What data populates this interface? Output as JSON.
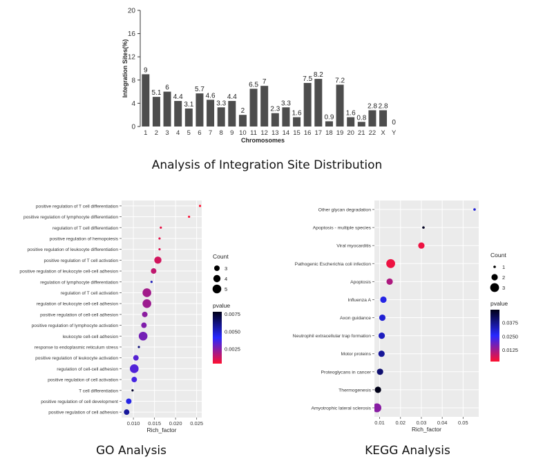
{
  "chart_data": [
    {
      "type": "bar",
      "title": "",
      "xlabel": "Chromosomes",
      "ylabel": "Integration Sites(%)",
      "ylim": [
        0,
        20
      ],
      "yticks": [
        0,
        4,
        8,
        12,
        16,
        20
      ],
      "grid": false,
      "categories": [
        "1",
        "2",
        "3",
        "4",
        "5",
        "6",
        "7",
        "8",
        "9",
        "10",
        "11",
        "12",
        "13",
        "14",
        "15",
        "16",
        "17",
        "18",
        "19",
        "20",
        "21",
        "22",
        "X",
        "Y"
      ],
      "values": [
        9,
        5.1,
        6,
        4.4,
        3.1,
        5.7,
        4.6,
        3.3,
        4.4,
        2,
        6.5,
        7,
        2.3,
        3.3,
        1.6,
        7.5,
        8.2,
        0.9,
        7.2,
        1.6,
        0.8,
        2.8,
        2.8,
        0
      ],
      "value_labels": [
        "9",
        "5.1",
        "6",
        "4.4",
        "3.1",
        "5.7",
        "4.6",
        "3.3",
        "4.4",
        "2",
        "6.5",
        "7",
        "2.3",
        "3.3",
        "1.6",
        "7.5",
        "8.2",
        "0.9",
        "7.2",
        "1.6",
        "0.8",
        "2.8",
        "2.8",
        "0"
      ],
      "bar_color": "#4d4d4d"
    },
    {
      "type": "scatter",
      "title": "",
      "xlabel": "Rich_factor",
      "xticks": [
        0.01,
        0.015,
        0.02,
        0.025
      ],
      "xtick_labels": [
        "0.010",
        "0.015",
        "0.020",
        "0.025"
      ],
      "xlim": [
        0.0072,
        0.0262
      ],
      "grid": true,
      "legend_placement": "right",
      "categories": [
        "positive regulation of T cell differentiation",
        "positive regulation of lymphocyte differentiation",
        "regulation of T cell differentiation",
        "positive regulation of hemopoiesis",
        "positive regulation of leukocyte differentiation",
        "positive regulation of T cell activation",
        "positive regulation of leukocyte cell-cell adhesion",
        "regulation of lymphocyte differentiation",
        "regulation of T cell activation",
        "regulation of leukocyte cell-cell adhesion",
        "positive regulation of cell-cell adhesion",
        "positive regulation of lymphocyte activation",
        "leukocyte cell-cell adhesion",
        "response to endoplasmic reticulum stress",
        "positive regulation of leukocyte activation",
        "regulation of cell-cell adhesion",
        "positive regulation of cell activation",
        "T cell differentiation",
        "positive regulation of cell development",
        "positive regulation of cell adhesion"
      ],
      "x": [
        0.0258,
        0.0232,
        0.0165,
        0.0162,
        0.0162,
        0.0158,
        0.0148,
        0.0143,
        0.0132,
        0.0132,
        0.0127,
        0.0125,
        0.0123,
        0.0113,
        0.0106,
        0.0102,
        0.0102,
        0.0098,
        0.0089,
        0.0084
      ],
      "count": [
        1,
        1,
        1,
        1,
        1,
        4,
        3,
        1,
        5,
        5,
        3,
        3,
        5,
        1,
        3,
        5,
        3,
        1,
        3,
        3
      ],
      "pvalue": [
        0.0004,
        0.0005,
        0.0008,
        0.0009,
        0.001,
        0.0012,
        0.0015,
        0.0052,
        0.002,
        0.0021,
        0.0024,
        0.0026,
        0.0028,
        0.0062,
        0.0033,
        0.0034,
        0.0036,
        0.0075,
        0.0045,
        0.0057
      ],
      "size_legend": {
        "title": "Count",
        "values": [
          3,
          4,
          5
        ]
      },
      "color_legend": {
        "title": "pvalue",
        "ticks": [
          "0.0075",
          "0.0050",
          "0.0025"
        ],
        "range": [
          0.0004,
          0.0078
        ]
      }
    },
    {
      "type": "scatter",
      "title": "",
      "xlabel": "Rich_factor",
      "xticks": [
        0.01,
        0.02,
        0.03,
        0.04,
        0.05
      ],
      "xtick_labels": [
        "0.01",
        "0.02",
        "0.03",
        "0.04",
        "0.05"
      ],
      "xlim": [
        0.0075,
        0.0575
      ],
      "grid": true,
      "legend_placement": "right",
      "categories": [
        "Other glycan degradation",
        "Apoptosis - multiple species",
        "Viral myocarditis",
        "Pathogenic Escherichia coli infection",
        "Apoptosis",
        "Influenza A",
        "Axon guidance",
        "Neutrophil extracellular trap formation",
        "Motor proteins",
        "Proteoglycans in cancer",
        "Thermogenesis",
        "Amyotrophic lateral sclerosis"
      ],
      "x": [
        0.0555,
        0.031,
        0.03,
        0.0153,
        0.0148,
        0.0118,
        0.0113,
        0.011,
        0.0109,
        0.0102,
        0.0092,
        0.0087
      ],
      "count": [
        1,
        1,
        2,
        3,
        2,
        2,
        2,
        2,
        2,
        2,
        2,
        3
      ],
      "pvalue": [
        0.03,
        0.048,
        0.004,
        0.004,
        0.011,
        0.028,
        0.03,
        0.032,
        0.036,
        0.04,
        0.049,
        0.015
      ],
      "size_legend": {
        "title": "Count",
        "values": [
          1,
          2,
          3
        ]
      },
      "color_legend": {
        "title": "pvalue",
        "ticks": [
          "0.0375",
          "0.0250",
          "0.0125"
        ],
        "range": [
          0.002,
          0.049
        ]
      }
    }
  ],
  "captions": {
    "bar": "Analysis of Integration Site Distribution",
    "go": "GO Analysis",
    "kegg": "KEGG Analysis"
  },
  "colors": {
    "pvalue_low": "#ff1030",
    "pvalue_mid": "#2828ff",
    "pvalue_high": "#000018",
    "panel_bg": "#ebebeb",
    "grid": "#ffffff"
  }
}
